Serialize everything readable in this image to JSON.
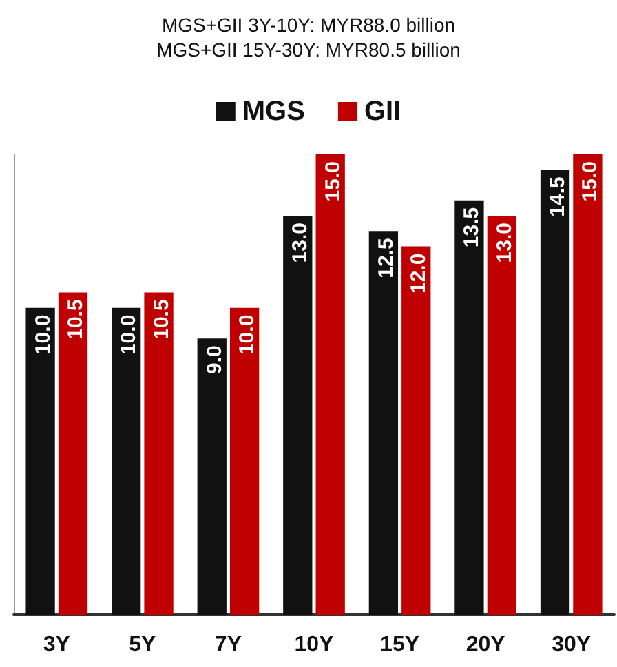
{
  "chart_data": {
    "type": "bar",
    "title": "MGS+GII 3Y-10Y: MYR88.0 billion",
    "subtitle": "MGS+GII 15Y-30Y: MYR80.5 billion",
    "categories": [
      "3Y",
      "5Y",
      "7Y",
      "10Y",
      "15Y",
      "20Y",
      "30Y"
    ],
    "series": [
      {
        "name": "MGS",
        "color": "#111111",
        "values": [
          10.0,
          10.0,
          9.0,
          13.0,
          12.5,
          13.5,
          14.5
        ],
        "value_labels": [
          "10.0",
          "10.0",
          "9.0",
          "13.0",
          "12.5",
          "13.5",
          "14.5"
        ]
      },
      {
        "name": "GII",
        "color": "#c00000",
        "values": [
          10.5,
          10.5,
          10.0,
          15.0,
          12.0,
          13.0,
          15.0
        ],
        "value_labels": [
          "10.5",
          "10.5",
          "10.0",
          "15.0",
          "12.0",
          "13.0",
          "15.0"
        ]
      }
    ],
    "legend": "top",
    "grid": false,
    "tick_labels": "x"
  }
}
